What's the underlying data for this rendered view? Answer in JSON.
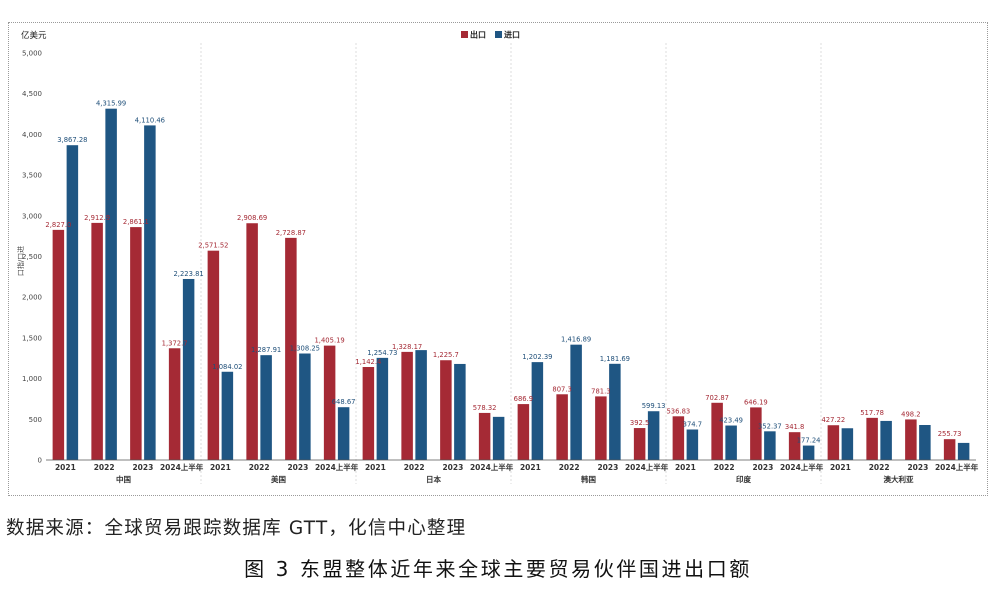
{
  "chart_data": {
    "type": "bar",
    "y_unit": "亿美元",
    "ylabel": "口指/口进",
    "ylim": [
      0,
      5000
    ],
    "yticks": [
      0,
      500,
      1000,
      1500,
      2000,
      2500,
      3000,
      3500,
      4000,
      4500,
      5000
    ],
    "ytick_labels": [
      "0",
      "500",
      "1,000",
      "1,500",
      "2,000",
      "2,500",
      "3,000",
      "3,500",
      "4,000",
      "4,500",
      "5,000"
    ],
    "grid": false,
    "legend_position": "top-center",
    "colors": {
      "export": "#a52a35",
      "import": "#1f5683"
    },
    "series": [
      {
        "key": "export",
        "name": "出口"
      },
      {
        "key": "import",
        "name": "进口"
      }
    ],
    "groups": [
      {
        "name": "中国",
        "periods": [
          {
            "label": "2021",
            "export": 2827.0,
            "import": 3867.28,
            "export_label": "2,827.0",
            "import_label": "3,867.28"
          },
          {
            "label": "2022",
            "export": 2912.9,
            "import": 4315.99,
            "export_label": "2,912.9",
            "import_label": "4,315.99"
          },
          {
            "label": "2023",
            "export": 2861.1,
            "import": 4110.46,
            "export_label": "2,861.1",
            "import_label": "4,110.46"
          },
          {
            "label": "2024上半年",
            "export": 1372.7,
            "import": 2223.81,
            "export_label": "1,372.7",
            "import_label": "2,223.81"
          }
        ]
      },
      {
        "name": "美国",
        "periods": [
          {
            "label": "2021",
            "export": 2571.52,
            "import": 1084.02,
            "export_label": "2,571.52",
            "import_label": "1,084.02"
          },
          {
            "label": "2022",
            "export": 2908.69,
            "import": 1287.91,
            "export_label": "2,908.69",
            "import_label": "1,287.91"
          },
          {
            "label": "2023",
            "export": 2728.87,
            "import": 1308.25,
            "export_label": "2,728.87",
            "import_label": "1,308.25"
          },
          {
            "label": "2024上半年",
            "export": 1405.19,
            "import": 648.67,
            "export_label": "1,405.19",
            "import_label": "648.67"
          }
        ]
      },
      {
        "name": "日本",
        "periods": [
          {
            "label": "2021",
            "export": 1142.4,
            "import": 1254.73,
            "export_label": "1,142.4",
            "import_label": "1,254.73"
          },
          {
            "label": "2022",
            "export": 1328.17,
            "import": 1350,
            "export_label": "1,328.17",
            "import_label": ""
          },
          {
            "label": "2023",
            "export": 1225.7,
            "import": 1180,
            "export_label": "1,225.7",
            "import_label": ""
          },
          {
            "label": "2024上半年",
            "export": 578.32,
            "import": 530,
            "export_label": "578.32",
            "import_label": ""
          }
        ]
      },
      {
        "name": "韩国",
        "periods": [
          {
            "label": "2021",
            "export": 686.9,
            "import": 1202.39,
            "export_label": "686.9",
            "import_label": "1,202.39"
          },
          {
            "label": "2022",
            "export": 807.3,
            "import": 1416.89,
            "export_label": "807.3",
            "import_label": "1,416.89"
          },
          {
            "label": "2023",
            "export": 781.3,
            "import": 1181.69,
            "export_label": "781.3",
            "import_label": "1,181.69"
          },
          {
            "label": "2024上半年",
            "export": 392.5,
            "import": 599.13,
            "export_label": "392.5",
            "import_label": "599.13"
          }
        ]
      },
      {
        "name": "印度",
        "periods": [
          {
            "label": "2021",
            "export": 536.83,
            "import": 374.7,
            "export_label": "536.83",
            "import_label": "374.7"
          },
          {
            "label": "2022",
            "export": 702.87,
            "import": 423.49,
            "export_label": "702.87",
            "import_label": "423.49"
          },
          {
            "label": "2023",
            "export": 646.19,
            "import": 352.37,
            "export_label": "646.19",
            "import_label": "352.37"
          },
          {
            "label": "2024上半年",
            "export": 341.8,
            "import": 177.24,
            "export_label": "341.8",
            "import_label": "177.24"
          }
        ]
      },
      {
        "name": "澳大利亚",
        "periods": [
          {
            "label": "2021",
            "export": 427.22,
            "import": 390,
            "export_label": "427.22",
            "import_label": ""
          },
          {
            "label": "2022",
            "export": 517.78,
            "import": 480,
            "export_label": "517.78",
            "import_label": ""
          },
          {
            "label": "2023",
            "export": 498.2,
            "import": 430,
            "export_label": "498.2",
            "import_label": ""
          },
          {
            "label": "2024上半年",
            "export": 255.73,
            "import": 210,
            "export_label": "255.73",
            "import_label": ""
          }
        ]
      }
    ]
  },
  "source_note": "数据来源：全球贸易跟踪数据库 GTT，化信中心整理",
  "figure_caption": "图 3 东盟整体近年来全球主要贸易伙伴国进出口额"
}
